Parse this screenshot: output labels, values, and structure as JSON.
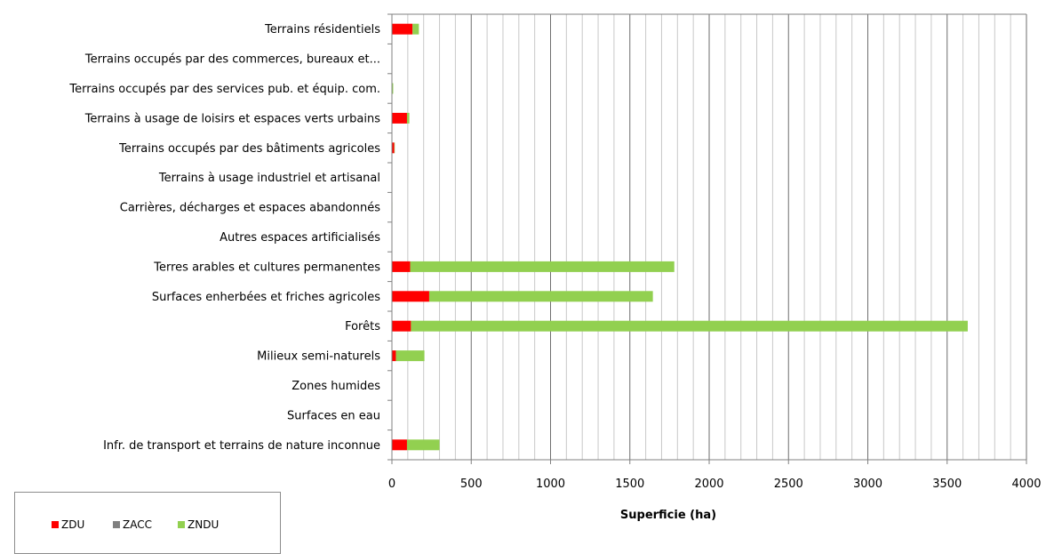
{
  "chart_data": {
    "type": "bar",
    "orientation": "horizontal",
    "stacked": true,
    "title": "",
    "xlabel": "Superficie (ha)",
    "ylabel": "",
    "xlim": [
      0,
      4000
    ],
    "x_ticks": [
      "0",
      "500",
      "1000",
      "1500",
      "2000",
      "2500",
      "3000",
      "3500",
      "4000"
    ],
    "grid": true,
    "legend_position": "bottom-left",
    "categories": [
      "Terrains résidentiels",
      "Terrains occupés par des commerces, bureaux et...",
      "Terrains occupés par des services pub. et équip. com.",
      "Terrains à usage de loisirs et espaces verts urbains",
      "Terrains occupés par des bâtiments agricoles",
      "Terrains à usage industriel et artisanal",
      "Carrières, décharges et espaces abandonnés",
      "Autres espaces artificialisés",
      "Terres arables et cultures permanentes",
      "Surfaces enherbées et friches agricoles",
      "Forêts",
      "Milieux semi-naturels",
      "Zones humides",
      "Surfaces en eau",
      "Infr. de transport et terrains de nature inconnue"
    ],
    "series": [
      {
        "name": "ZDU",
        "color": "#ff0000",
        "values": [
          130,
          2,
          3,
          95,
          15,
          1,
          2,
          1,
          115,
          235,
          120,
          25,
          0,
          0,
          95
        ]
      },
      {
        "name": "ZACC",
        "color": "#808080",
        "values": [
          0,
          0,
          0,
          0,
          0,
          0,
          0,
          0,
          0,
          0,
          0,
          0,
          0,
          0,
          0
        ]
      },
      {
        "name": "ZNDU",
        "color": "#92d050",
        "values": [
          40,
          0,
          5,
          15,
          3,
          0,
          1,
          0,
          1665,
          1410,
          3510,
          180,
          0,
          0,
          205
        ]
      }
    ]
  }
}
